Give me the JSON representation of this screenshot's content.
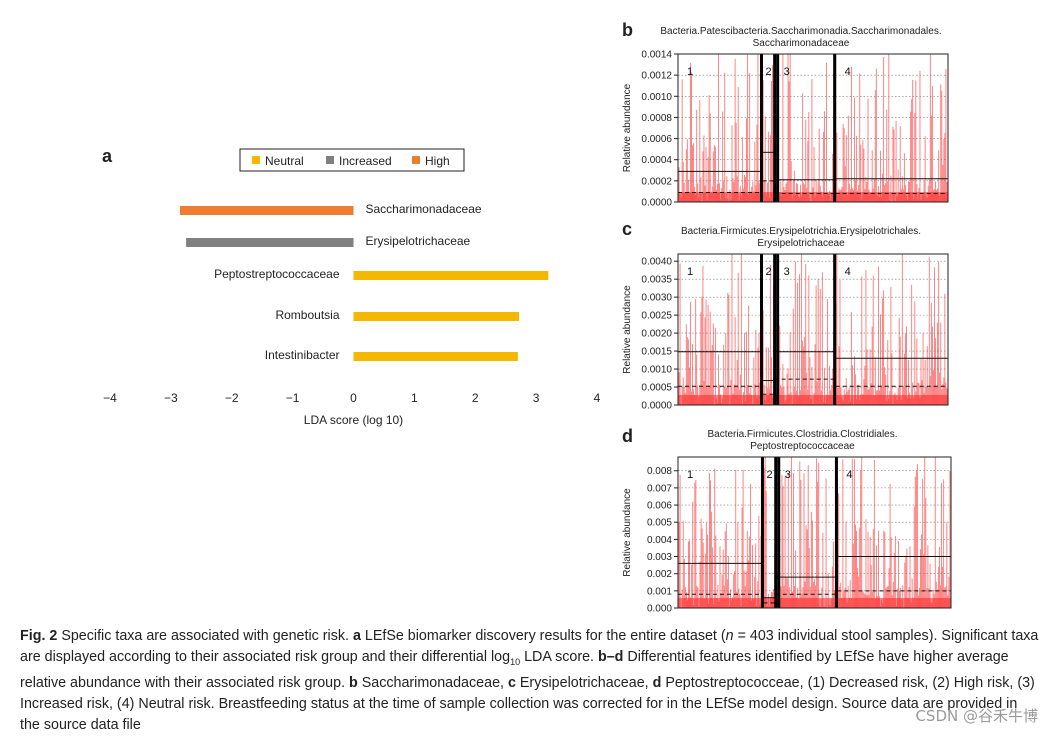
{
  "panel_a": {
    "letter": "a",
    "legend": [
      {
        "label": "Neutral",
        "color": "#f5b800"
      },
      {
        "label": "Increased",
        "color": "#808080"
      },
      {
        "label": "High",
        "color": "#ed7d31"
      }
    ],
    "xlabel": "LDA score (log 10)",
    "xticks": [
      "−4",
      "−3",
      "−2",
      "−1",
      "0",
      "1",
      "2",
      "3",
      "4"
    ]
  },
  "chart_data": [
    {
      "type": "bar",
      "orientation": "horizontal",
      "categories": [
        "Saccharimonadaceae",
        "Erysipelotrichaceae",
        "Peptostreptococcaceae",
        "Romboutsia",
        "Intestinibacter"
      ],
      "values": [
        -2.85,
        -2.75,
        3.2,
        2.72,
        2.7
      ],
      "groups": [
        "High",
        "Increased",
        "Neutral",
        "Neutral",
        "Neutral"
      ],
      "colors": [
        "#ed7d31",
        "#808080",
        "#f5b800",
        "#f5b800",
        "#f5b800"
      ],
      "xlabel": "LDA score (log 10)",
      "xlim": [
        -4,
        4
      ],
      "legend_position": "top"
    },
    {
      "type": "bar",
      "letter": "b",
      "title_line1": "Bacteria.Patescibacteria.Saccharimonadia.Saccharimonadales.",
      "title_line2": "Saccharimonadaceae",
      "ylabel": "Relative abundance",
      "yticks": [
        "0.0000",
        "0.0002",
        "0.0004",
        "0.0006",
        "0.0008",
        "0.0010",
        "0.0012",
        "0.0014"
      ],
      "ylim": [
        0,
        0.0014
      ],
      "groups": [
        "1",
        "2",
        "3",
        "4"
      ],
      "group_means": [
        0.00029,
        0.00047,
        0.00021,
        0.00022
      ],
      "group_medians": [
        9e-05,
        0.0002,
        8e-05,
        8e-05
      ]
    },
    {
      "type": "bar",
      "letter": "c",
      "title_line1": "Bacteria.Firmicutes.Erysipelotrichia.Erysipelotrichales.",
      "title_line2": "Erysipelotrichaceae",
      "ylabel": "Relative abundance",
      "yticks": [
        "0.0000",
        "0.0005",
        "0.0010",
        "0.0015",
        "0.0020",
        "0.0025",
        "0.0030",
        "0.0035",
        "0.0040"
      ],
      "ylim": [
        0,
        0.0042
      ],
      "groups": [
        "1",
        "2",
        "3",
        "4"
      ],
      "group_means": [
        0.00148,
        0.00068,
        0.00148,
        0.0013
      ],
      "group_medians": [
        0.00052,
        0.0003,
        0.00072,
        0.00052
      ]
    },
    {
      "type": "bar",
      "letter": "d",
      "title_line1": "Bacteria.Firmicutes.Clostridia.Clostridiales.",
      "title_line2": "Peptostreptococcaceae",
      "ylabel": "Relative abundance",
      "yticks": [
        "0.000",
        "0.001",
        "0.002",
        "0.003",
        "0.004",
        "0.005",
        "0.006",
        "0.007",
        "0.008"
      ],
      "ylim": [
        0,
        0.0088
      ],
      "groups": [
        "1",
        "2",
        "3",
        "4"
      ],
      "group_means": [
        0.0026,
        0.0006,
        0.0018,
        0.003
      ],
      "group_medians": [
        0.0008,
        0.0003,
        0.0008,
        0.001
      ]
    }
  ],
  "caption": {
    "fig_label": "Fig. 2",
    "title": " Specific taxa are associated with genetic risk. ",
    "a_key": "a",
    "a_text": " LEfSe biomarker discovery results for the entire dataset (",
    "n_var": "n",
    "n_text": " = 403 individual stool samples). Significant taxa are displayed according to their associated risk group and their differential log",
    "sub10": "10",
    "after_sub": " LDA score. ",
    "bd_key": "b–d",
    "bd_text": " Differential features identified by LEfSe have higher average relative abundance with their associated risk group. ",
    "b_key": "b",
    "b_text": " Saccharimonadaceae, ",
    "c_key": "c",
    "c_text": " Erysipelotrichaceae, ",
    "d_key": "d",
    "d_text": " Peptostreptococceae, (1) Decreased risk, (2) High risk, (3) Increased risk, (4) Neutral risk. Breastfeeding status at the time of sample collection was corrected for in the LEfSe model design. Source data are provided in the source data file"
  },
  "watermark": "CSDN @谷禾牛博"
}
